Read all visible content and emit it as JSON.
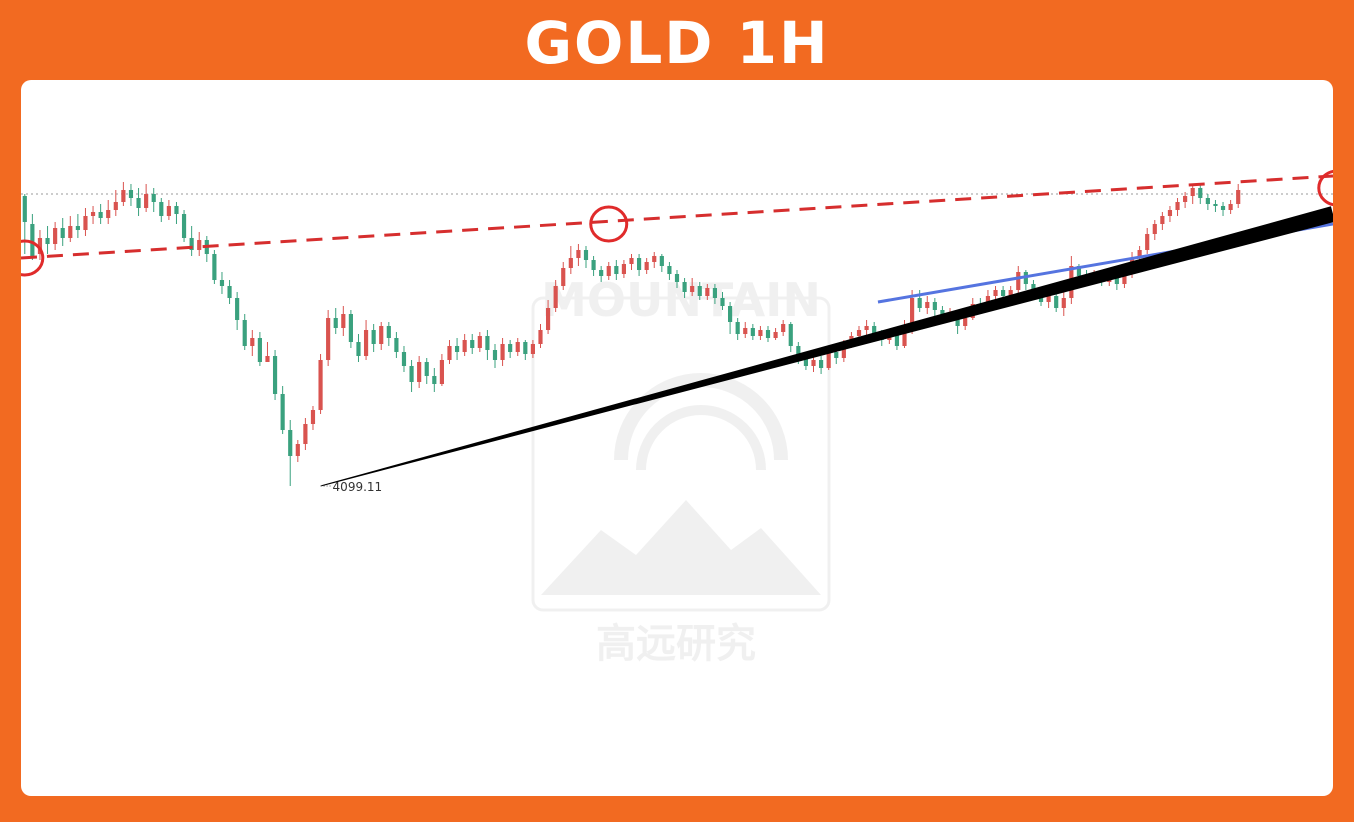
{
  "header": {
    "title": "GOLD 1H"
  },
  "watermark": {
    "brand_en": "MOUNTAIN",
    "brand_cn": "高远研究"
  },
  "colors": {
    "frame": "#f26a21",
    "up_candle": "#d9534f",
    "down_candle": "#3aa17e",
    "resistance_line": "#d62e2e",
    "channel_line": "#5574e0",
    "support_line": "#000000",
    "marker_circle": "#e02b2b"
  },
  "chart_data": {
    "type": "candlestick",
    "title": "GOLD 1H",
    "low_marker_label": "4099.11",
    "axes_visible": false,
    "grid": false,
    "candles": [
      [
        0.87,
        0.74,
        0.88,
        0.58
      ],
      [
        0.73,
        0.57,
        0.78,
        0.55
      ],
      [
        0.58,
        0.66,
        0.7,
        0.55
      ],
      [
        0.66,
        0.63,
        0.72,
        0.58
      ],
      [
        0.63,
        0.71,
        0.74,
        0.6
      ],
      [
        0.71,
        0.66,
        0.76,
        0.62
      ],
      [
        0.66,
        0.72,
        0.77,
        0.64
      ],
      [
        0.72,
        0.7,
        0.78,
        0.66
      ],
      [
        0.7,
        0.77,
        0.81,
        0.67
      ],
      [
        0.77,
        0.79,
        0.82,
        0.73
      ],
      [
        0.79,
        0.76,
        0.83,
        0.73
      ],
      [
        0.76,
        0.8,
        0.85,
        0.73
      ],
      [
        0.8,
        0.84,
        0.9,
        0.77
      ],
      [
        0.84,
        0.9,
        0.94,
        0.82
      ],
      [
        0.9,
        0.86,
        0.93,
        0.82
      ],
      [
        0.86,
        0.81,
        0.91,
        0.77
      ],
      [
        0.81,
        0.88,
        0.93,
        0.79
      ],
      [
        0.88,
        0.84,
        0.91,
        0.79
      ],
      [
        0.84,
        0.77,
        0.86,
        0.74
      ],
      [
        0.77,
        0.82,
        0.85,
        0.75
      ],
      [
        0.82,
        0.78,
        0.84,
        0.73
      ],
      [
        0.78,
        0.66,
        0.8,
        0.64
      ],
      [
        0.66,
        0.6,
        0.72,
        0.57
      ],
      [
        0.6,
        0.65,
        0.69,
        0.57
      ],
      [
        0.65,
        0.58,
        0.67,
        0.54
      ],
      [
        0.58,
        0.45,
        0.6,
        0.43
      ],
      [
        0.45,
        0.42,
        0.49,
        0.38
      ],
      [
        0.42,
        0.36,
        0.45,
        0.33
      ],
      [
        0.36,
        0.25,
        0.39,
        0.2
      ],
      [
        0.25,
        0.12,
        0.28,
        0.1
      ],
      [
        0.12,
        0.16,
        0.2,
        0.07
      ],
      [
        0.16,
        0.04,
        0.19,
        0.02
      ],
      [
        0.04,
        0.07,
        0.14,
        0.04
      ],
      [
        0.07,
        -0.12,
        0.1,
        -0.15
      ],
      [
        -0.12,
        -0.3,
        -0.08,
        -0.32
      ],
      [
        -0.3,
        -0.43,
        -0.25,
        -0.58
      ],
      [
        -0.43,
        -0.37,
        -0.35,
        -0.46
      ],
      [
        -0.37,
        -0.27,
        -0.24,
        -0.4
      ],
      [
        -0.27,
        -0.2,
        -0.18,
        -0.3
      ],
      [
        -0.2,
        0.05,
        0.08,
        -0.22
      ],
      [
        0.05,
        0.26,
        0.3,
        0.02
      ],
      [
        0.26,
        0.21,
        0.31,
        0.18
      ],
      [
        0.21,
        0.28,
        0.32,
        0.17
      ],
      [
        0.28,
        0.14,
        0.3,
        0.11
      ],
      [
        0.14,
        0.07,
        0.18,
        0.04
      ],
      [
        0.07,
        0.2,
        0.25,
        0.05
      ],
      [
        0.2,
        0.13,
        0.23,
        0.09
      ],
      [
        0.13,
        0.22,
        0.24,
        0.1
      ],
      [
        0.22,
        0.16,
        0.24,
        0.12
      ],
      [
        0.16,
        0.09,
        0.19,
        0.06
      ],
      [
        0.09,
        0.02,
        0.12,
        -0.01
      ],
      [
        0.02,
        -0.06,
        0.05,
        -0.11
      ],
      [
        -0.06,
        0.04,
        0.07,
        -0.09
      ],
      [
        0.04,
        -0.03,
        0.06,
        -0.07
      ],
      [
        -0.03,
        -0.07,
        0.01,
        -0.11
      ],
      [
        -0.07,
        0.05,
        0.08,
        -0.08
      ],
      [
        0.05,
        0.12,
        0.15,
        0.03
      ],
      [
        0.12,
        0.09,
        0.16,
        0.05
      ],
      [
        0.09,
        0.15,
        0.18,
        0.07
      ],
      [
        0.15,
        0.11,
        0.18,
        0.08
      ],
      [
        0.11,
        0.17,
        0.19,
        0.09
      ],
      [
        0.17,
        0.1,
        0.2,
        0.05
      ],
      [
        0.1,
        0.05,
        0.13,
        0.01
      ],
      [
        0.05,
        0.13,
        0.16,
        0.02
      ],
      [
        0.13,
        0.09,
        0.15,
        0.06
      ],
      [
        0.09,
        0.14,
        0.16,
        0.07
      ],
      [
        0.14,
        0.08,
        0.15,
        0.05
      ],
      [
        0.08,
        0.13,
        0.15,
        0.06
      ],
      [
        0.13,
        0.2,
        0.23,
        0.11
      ],
      [
        0.2,
        0.31,
        0.35,
        0.18
      ],
      [
        0.31,
        0.42,
        0.45,
        0.29
      ],
      [
        0.42,
        0.51,
        0.54,
        0.4
      ],
      [
        0.51,
        0.56,
        0.62,
        0.48
      ],
      [
        0.56,
        0.6,
        0.63,
        0.52
      ],
      [
        0.6,
        0.55,
        0.62,
        0.51
      ],
      [
        0.55,
        0.5,
        0.57,
        0.47
      ],
      [
        0.5,
        0.47,
        0.52,
        0.44
      ],
      [
        0.47,
        0.52,
        0.54,
        0.45
      ],
      [
        0.52,
        0.48,
        0.55,
        0.45
      ],
      [
        0.48,
        0.53,
        0.55,
        0.46
      ],
      [
        0.53,
        0.56,
        0.58,
        0.5
      ],
      [
        0.56,
        0.5,
        0.58,
        0.47
      ],
      [
        0.5,
        0.54,
        0.56,
        0.48
      ],
      [
        0.54,
        0.57,
        0.59,
        0.51
      ],
      [
        0.57,
        0.52,
        0.58,
        0.49
      ],
      [
        0.52,
        0.48,
        0.54,
        0.45
      ],
      [
        0.48,
        0.44,
        0.5,
        0.41
      ],
      [
        0.44,
        0.39,
        0.46,
        0.36
      ],
      [
        0.39,
        0.42,
        0.46,
        0.37
      ],
      [
        0.42,
        0.37,
        0.44,
        0.35
      ],
      [
        0.37,
        0.41,
        0.43,
        0.35
      ],
      [
        0.41,
        0.36,
        0.43,
        0.33
      ],
      [
        0.36,
        0.32,
        0.39,
        0.3
      ],
      [
        0.32,
        0.24,
        0.34,
        0.18
      ],
      [
        0.24,
        0.18,
        0.26,
        0.15
      ],
      [
        0.18,
        0.21,
        0.24,
        0.16
      ],
      [
        0.21,
        0.17,
        0.23,
        0.15
      ],
      [
        0.17,
        0.2,
        0.22,
        0.15
      ],
      [
        0.2,
        0.16,
        0.22,
        0.14
      ],
      [
        0.16,
        0.19,
        0.21,
        0.15
      ],
      [
        0.19,
        0.23,
        0.25,
        0.17
      ],
      [
        0.23,
        0.12,
        0.24,
        0.09
      ],
      [
        0.12,
        0.06,
        0.14,
        0.03
      ],
      [
        0.06,
        0.02,
        0.08,
        0.0
      ],
      [
        0.02,
        0.05,
        0.08,
        -0.01
      ],
      [
        0.05,
        0.01,
        0.07,
        -0.02
      ],
      [
        0.01,
        0.09,
        0.11,
        0.0
      ],
      [
        0.09,
        0.06,
        0.11,
        0.03
      ],
      [
        0.06,
        0.13,
        0.15,
        0.04
      ],
      [
        0.13,
        0.17,
        0.19,
        0.11
      ],
      [
        0.17,
        0.2,
        0.22,
        0.15
      ],
      [
        0.2,
        0.22,
        0.25,
        0.17
      ],
      [
        0.22,
        0.18,
        0.24,
        0.16
      ],
      [
        0.18,
        0.15,
        0.2,
        0.12
      ],
      [
        0.15,
        0.18,
        0.2,
        0.13
      ],
      [
        0.18,
        0.12,
        0.2,
        0.1
      ],
      [
        0.12,
        0.2,
        0.25,
        0.11
      ],
      [
        0.2,
        0.36,
        0.4,
        0.18
      ],
      [
        0.36,
        0.31,
        0.4,
        0.29
      ],
      [
        0.31,
        0.34,
        0.37,
        0.28
      ],
      [
        0.34,
        0.3,
        0.36,
        0.27
      ],
      [
        0.3,
        0.26,
        0.32,
        0.23
      ],
      [
        0.26,
        0.28,
        0.31,
        0.24
      ],
      [
        0.28,
        0.22,
        0.3,
        0.18
      ],
      [
        0.22,
        0.26,
        0.29,
        0.2
      ],
      [
        0.26,
        0.33,
        0.36,
        0.25
      ],
      [
        0.33,
        0.31,
        0.36,
        0.28
      ],
      [
        0.31,
        0.37,
        0.4,
        0.29
      ],
      [
        0.37,
        0.4,
        0.42,
        0.34
      ],
      [
        0.4,
        0.37,
        0.42,
        0.34
      ],
      [
        0.37,
        0.4,
        0.42,
        0.35
      ],
      [
        0.4,
        0.49,
        0.52,
        0.38
      ],
      [
        0.49,
        0.43,
        0.5,
        0.4
      ],
      [
        0.43,
        0.39,
        0.45,
        0.37
      ],
      [
        0.39,
        0.34,
        0.41,
        0.32
      ],
      [
        0.34,
        0.37,
        0.39,
        0.31
      ],
      [
        0.37,
        0.31,
        0.39,
        0.29
      ],
      [
        0.31,
        0.36,
        0.4,
        0.27
      ],
      [
        0.36,
        0.52,
        0.57,
        0.33
      ],
      [
        0.52,
        0.47,
        0.53,
        0.44
      ],
      [
        0.47,
        0.45,
        0.5,
        0.43
      ],
      [
        0.45,
        0.48,
        0.5,
        0.43
      ],
      [
        0.48,
        0.44,
        0.5,
        0.42
      ],
      [
        0.44,
        0.47,
        0.49,
        0.42
      ],
      [
        0.47,
        0.43,
        0.49,
        0.4
      ],
      [
        0.43,
        0.49,
        0.52,
        0.41
      ],
      [
        0.49,
        0.56,
        0.59,
        0.46
      ],
      [
        0.56,
        0.6,
        0.62,
        0.52
      ],
      [
        0.6,
        0.68,
        0.71,
        0.58
      ],
      [
        0.68,
        0.73,
        0.75,
        0.65
      ],
      [
        0.73,
        0.77,
        0.79,
        0.7
      ],
      [
        0.77,
        0.8,
        0.82,
        0.74
      ],
      [
        0.8,
        0.84,
        0.86,
        0.77
      ],
      [
        0.84,
        0.87,
        0.89,
        0.81
      ],
      [
        0.87,
        0.91,
        0.93,
        0.83
      ],
      [
        0.91,
        0.86,
        0.93,
        0.83
      ],
      [
        0.86,
        0.83,
        0.88,
        0.8
      ],
      [
        0.83,
        0.82,
        0.85,
        0.79
      ],
      [
        0.82,
        0.8,
        0.84,
        0.77
      ],
      [
        0.8,
        0.83,
        0.85,
        0.78
      ],
      [
        0.83,
        0.9,
        0.93,
        0.81
      ]
    ],
    "annotations": {
      "resistance_line": {
        "style": "dashed",
        "color": "#d62e2e",
        "from_bar": 0,
        "from_price": 0.56,
        "to_bar": 173,
        "to_price": 0.97
      },
      "support_line": {
        "style": "solid-thickening",
        "color": "#000000",
        "from_bar": 39,
        "from_price": -0.58,
        "to_bar": 173,
        "to_price": 0.78
      },
      "channel_line": {
        "style": "solid",
        "color": "#5574e0",
        "from_bar": 113,
        "from_price": 0.34,
        "to_bar": 173,
        "to_price": 0.73
      },
      "marker_circles": [
        {
          "bar": 0,
          "price": 0.56
        },
        {
          "bar": 77,
          "price": 0.73
        },
        {
          "bar": 173,
          "price": 0.91
        }
      ],
      "reference_price_line": {
        "style": "dotted",
        "price": 0.88
      },
      "low_marker": {
        "bar": 39,
        "price": -0.58,
        "label": "4099.11"
      }
    }
  }
}
